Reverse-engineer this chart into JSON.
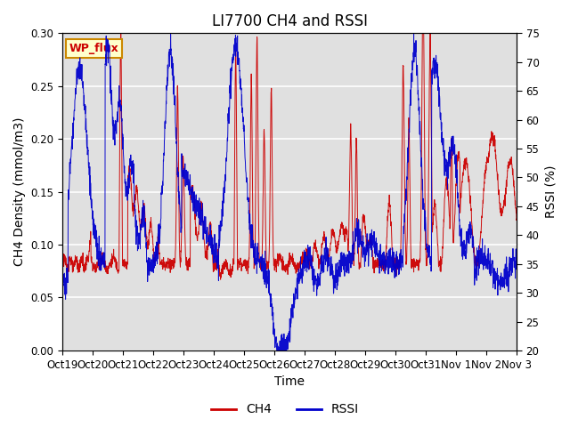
{
  "title": "LI7700 CH4 and RSSI",
  "xlabel": "Time",
  "ylabel_left": "CH4 Density (mmol/m3)",
  "ylabel_right": "RSSI (%)",
  "ylim_left": [
    0.0,
    0.3
  ],
  "ylim_right": [
    20,
    75
  ],
  "yticks_left": [
    0.0,
    0.05,
    0.1,
    0.15,
    0.2,
    0.25,
    0.3
  ],
  "yticks_right": [
    20,
    25,
    30,
    35,
    40,
    45,
    50,
    55,
    60,
    65,
    70,
    75
  ],
  "xtick_labels": [
    "Oct 19",
    "Oct 20",
    "Oct 21",
    "Oct 22",
    "Oct 23",
    "Oct 24",
    "Oct 25",
    "Oct 26",
    "Oct 27",
    "Oct 28",
    "Oct 29",
    "Oct 30",
    "Oct 31",
    "Nov 1",
    "Nov 2",
    "Nov 3"
  ],
  "ch4_color": "#cc0000",
  "rssi_color": "#0000cc",
  "background_color": "#e0e0e0",
  "figure_bg": "#ffffff",
  "legend_label_ch4": "CH4",
  "legend_label_rssi": "RSSI",
  "site_label": "WP_flux",
  "site_label_bg": "#ffffcc",
  "site_label_border": "#cc8800",
  "grid_color": "#ffffff",
  "title_fontsize": 12,
  "axis_fontsize": 10,
  "tick_fontsize": 8.5
}
